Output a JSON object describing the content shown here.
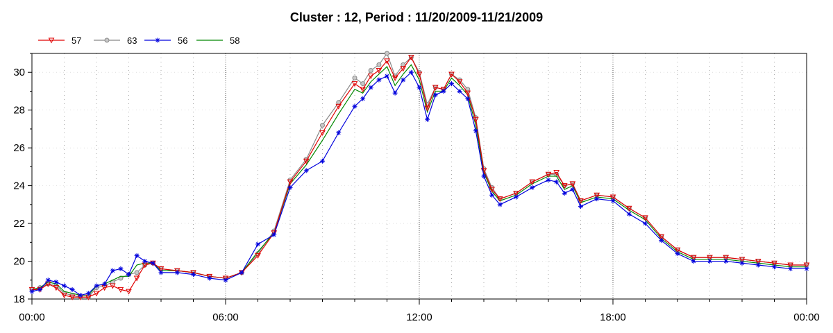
{
  "chart_data": {
    "type": "line",
    "title": "Cluster : 12, Period : 11/20/2009-11/21/2009",
    "xlabel": "",
    "ylabel": "",
    "x_ticks": [
      "00:00",
      "06:00",
      "12:00",
      "18:00",
      "00:00"
    ],
    "xlim": [
      0,
      24
    ],
    "ylim": [
      18,
      31
    ],
    "y_ticks": [
      18,
      20,
      22,
      24,
      26,
      28,
      30
    ],
    "grid": true,
    "legend_position": "top-left",
    "x": [
      0,
      0.25,
      0.5,
      0.75,
      1,
      1.25,
      1.5,
      1.75,
      2,
      2.25,
      2.5,
      2.75,
      3,
      3.25,
      3.5,
      3.75,
      4,
      4.5,
      5,
      5.5,
      6,
      6.5,
      7,
      7.5,
      8,
      8.5,
      9,
      9.5,
      10,
      10.25,
      10.5,
      10.75,
      11,
      11.25,
      11.5,
      11.75,
      12,
      12.25,
      12.5,
      12.75,
      13,
      13.25,
      13.5,
      13.75,
      14,
      14.25,
      14.5,
      15,
      15.5,
      16,
      16.25,
      16.5,
      16.75,
      17,
      17.5,
      18,
      18.5,
      19,
      19.5,
      20,
      20.5,
      21,
      21.5,
      22,
      22.5,
      23,
      23.5,
      24
    ],
    "series": [
      {
        "name": "57",
        "color": "#e00000",
        "marker": "triangle-down",
        "values": [
          18.5,
          18.5,
          18.8,
          18.6,
          18.2,
          18.1,
          18.1,
          18.1,
          18.3,
          18.6,
          18.7,
          18.5,
          18.4,
          19.1,
          19.8,
          19.9,
          19.6,
          19.5,
          19.4,
          19.2,
          19.1,
          19.4,
          20.3,
          21.5,
          24.2,
          25.3,
          26.8,
          28.2,
          29.4,
          29.1,
          29.8,
          30.1,
          30.6,
          29.7,
          30.2,
          30.8,
          29.9,
          28.1,
          29.2,
          29.1,
          29.9,
          29.5,
          28.9,
          27.5,
          24.8,
          23.8,
          23.3,
          23.6,
          24.2,
          24.6,
          24.7,
          24.0,
          24.1,
          23.2,
          23.5,
          23.4,
          22.8,
          22.3,
          21.3,
          20.6,
          20.2,
          20.2,
          20.2,
          20.1,
          20.0,
          19.9,
          19.8,
          19.8
        ]
      },
      {
        "name": "63",
        "color": "#888888",
        "marker": "circle",
        "values": [
          18.5,
          18.6,
          18.8,
          18.7,
          18.3,
          18.2,
          18.1,
          18.1,
          18.6,
          18.7,
          18.9,
          19.1,
          19.3,
          19.4,
          19.8,
          19.9,
          19.6,
          19.5,
          19.4,
          19.2,
          19.1,
          19.4,
          20.4,
          21.6,
          24.3,
          25.4,
          27.2,
          28.4,
          29.7,
          29.4,
          30.1,
          30.4,
          31.0,
          29.8,
          30.4,
          30.8,
          30.0,
          28.3,
          29.2,
          29.1,
          29.9,
          29.6,
          29.1,
          27.6,
          24.9,
          23.9,
          23.3,
          23.6,
          24.2,
          24.6,
          24.6,
          24.0,
          24.1,
          23.2,
          23.5,
          23.4,
          22.8,
          22.3,
          21.3,
          20.6,
          20.2,
          20.2,
          20.2,
          20.1,
          20.0,
          19.9,
          19.8,
          19.8
        ]
      },
      {
        "name": "56",
        "color": "#0000dd",
        "marker": "star",
        "values": [
          18.4,
          18.5,
          19.0,
          18.9,
          18.7,
          18.5,
          18.2,
          18.3,
          18.7,
          18.8,
          19.5,
          19.6,
          19.3,
          20.3,
          20.0,
          19.9,
          19.4,
          19.4,
          19.3,
          19.1,
          19.0,
          19.4,
          20.9,
          21.4,
          23.9,
          24.8,
          25.3,
          26.8,
          28.2,
          28.6,
          29.2,
          29.6,
          29.8,
          28.9,
          29.6,
          30.0,
          29.2,
          27.5,
          28.8,
          29.0,
          29.4,
          29.0,
          28.6,
          26.9,
          24.5,
          23.5,
          23.0,
          23.4,
          23.9,
          24.3,
          24.2,
          23.6,
          23.8,
          22.9,
          23.3,
          23.2,
          22.5,
          22.0,
          21.1,
          20.4,
          20.0,
          20.0,
          20.0,
          19.9,
          19.8,
          19.7,
          19.6,
          19.6
        ]
      },
      {
        "name": "58",
        "color": "#008800",
        "marker": "none",
        "values": [
          18.5,
          18.6,
          18.9,
          18.8,
          18.4,
          18.3,
          18.2,
          18.2,
          18.7,
          18.8,
          19.0,
          19.2,
          19.2,
          19.8,
          19.9,
          19.9,
          19.5,
          19.5,
          19.4,
          19.2,
          19.1,
          19.4,
          20.5,
          21.5,
          24.1,
          25.1,
          26.4,
          27.8,
          29.1,
          28.9,
          29.5,
          29.9,
          30.3,
          29.3,
          29.9,
          30.4,
          29.6,
          27.9,
          29.0,
          29.0,
          29.7,
          29.3,
          28.8,
          27.2,
          24.7,
          23.7,
          23.2,
          23.5,
          24.1,
          24.5,
          24.5,
          23.8,
          24.0,
          23.1,
          23.4,
          23.3,
          22.7,
          22.2,
          21.2,
          20.5,
          20.1,
          20.1,
          20.1,
          20.0,
          19.9,
          19.8,
          19.7,
          19.7
        ]
      }
    ]
  }
}
